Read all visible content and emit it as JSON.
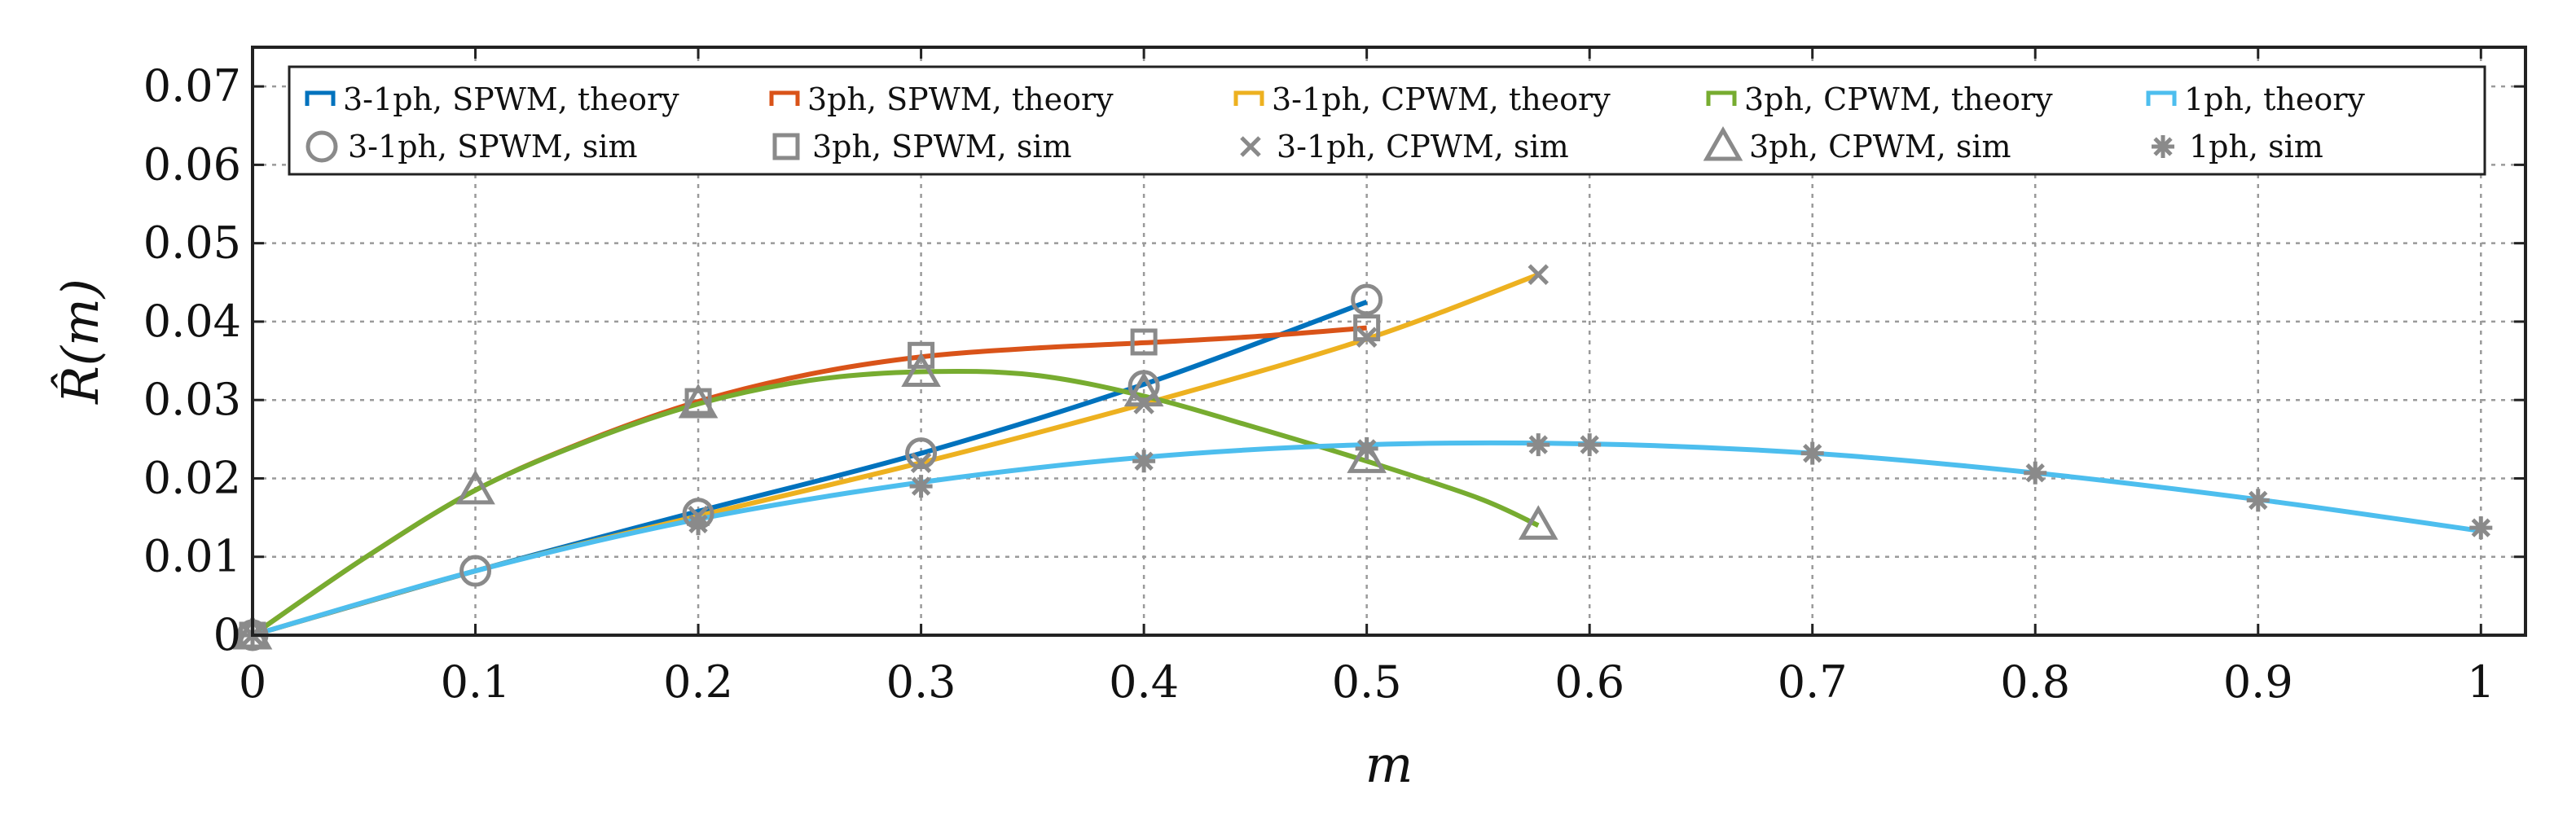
{
  "chart_data": {
    "type": "line",
    "title": "",
    "xlabel": "m",
    "ylabel": "R̂(m)",
    "xlim": [
      0,
      1.02
    ],
    "ylim": [
      0,
      0.075
    ],
    "grid": true,
    "legend_position": "top",
    "x_ticks": [
      {
        "value": 0,
        "label": "0"
      },
      {
        "value": 0.1,
        "label": "0.1"
      },
      {
        "value": 0.2,
        "label": "0.2"
      },
      {
        "value": 0.3,
        "label": "0.3"
      },
      {
        "value": 0.4,
        "label": "0.4"
      },
      {
        "value": 0.5,
        "label": "0.5"
      },
      {
        "value": 0.6,
        "label": "0.6"
      },
      {
        "value": 0.7,
        "label": "0.7"
      },
      {
        "value": 0.8,
        "label": "0.8"
      },
      {
        "value": 0.9,
        "label": "0.9"
      },
      {
        "value": 1,
        "label": "1"
      }
    ],
    "y_ticks": [
      {
        "value": 0,
        "label": "0"
      },
      {
        "value": 0.01,
        "label": "0.01"
      },
      {
        "value": 0.02,
        "label": "0.02"
      },
      {
        "value": 0.03,
        "label": "0.03"
      },
      {
        "value": 0.04,
        "label": "0.04"
      },
      {
        "value": 0.05,
        "label": "0.05"
      },
      {
        "value": 0.06,
        "label": "0.06"
      },
      {
        "value": 0.07,
        "label": "0.07"
      }
    ],
    "series": [
      {
        "name": "3-1ph, SPWM, theory",
        "kind": "line",
        "color": "#0072BD",
        "x": [
          0,
          0.1,
          0.2,
          0.3,
          0.4,
          0.5
        ],
        "y": [
          0,
          0.0082,
          0.0158,
          0.0232,
          0.032,
          0.0425
        ]
      },
      {
        "name": "3ph, SPWM, theory",
        "kind": "line",
        "color": "#D95319",
        "x": [
          0,
          0.05,
          0.1,
          0.15,
          0.2,
          0.25,
          0.3,
          0.35,
          0.4,
          0.45,
          0.5
        ],
        "y": [
          0,
          0.0098,
          0.0185,
          0.0248,
          0.0298,
          0.0333,
          0.0355,
          0.0366,
          0.0373,
          0.0381,
          0.0392
        ]
      },
      {
        "name": "3-1ph, CPWM, theory",
        "kind": "line",
        "color": "#EDB120",
        "x": [
          0,
          0.1,
          0.2,
          0.3,
          0.4,
          0.5,
          0.577
        ],
        "y": [
          0,
          0.0082,
          0.0152,
          0.022,
          0.0295,
          0.0378,
          0.046
        ]
      },
      {
        "name": "3ph, CPWM, theory",
        "kind": "line",
        "color": "#77AC30",
        "x": [
          0,
          0.05,
          0.1,
          0.15,
          0.2,
          0.25,
          0.3,
          0.35,
          0.4,
          0.45,
          0.5,
          0.55,
          0.577
        ],
        "y": [
          0,
          0.0098,
          0.0185,
          0.0247,
          0.0295,
          0.0325,
          0.0336,
          0.0332,
          0.0305,
          0.0265,
          0.0222,
          0.0175,
          0.014
        ]
      },
      {
        "name": "1ph, theory",
        "kind": "line",
        "color": "#4DBEEE",
        "x": [
          0,
          0.1,
          0.2,
          0.3,
          0.4,
          0.5,
          0.6,
          0.7,
          0.8,
          0.9,
          1.0
        ],
        "y": [
          0,
          0.0082,
          0.0148,
          0.0195,
          0.0227,
          0.0243,
          0.0244,
          0.0232,
          0.0207,
          0.0173,
          0.0133
        ]
      },
      {
        "name": "3-1ph, SPWM, sim",
        "kind": "marker",
        "marker": "circle",
        "color": "#8a8a8a",
        "x": [
          0,
          0.1,
          0.2,
          0.3,
          0.4,
          0.5
        ],
        "y": [
          0,
          0.0082,
          0.0155,
          0.0232,
          0.0318,
          0.0428
        ]
      },
      {
        "name": "3ph, SPWM, sim",
        "kind": "marker",
        "marker": "square",
        "color": "#8a8a8a",
        "x": [
          0,
          0.2,
          0.3,
          0.4,
          0.5
        ],
        "y": [
          0,
          0.0298,
          0.0357,
          0.0374,
          0.0392
        ]
      },
      {
        "name": "3-1ph, CPWM, sim",
        "kind": "marker",
        "marker": "cross",
        "color": "#8a8a8a",
        "x": [
          0,
          0.2,
          0.3,
          0.4,
          0.5,
          0.577
        ],
        "y": [
          0,
          0.0152,
          0.022,
          0.0295,
          0.038,
          0.046
        ]
      },
      {
        "name": "3ph, CPWM, sim",
        "kind": "marker",
        "marker": "triangle",
        "color": "#8a8a8a",
        "x": [
          0,
          0.1,
          0.2,
          0.3,
          0.4,
          0.5,
          0.577
        ],
        "y": [
          0,
          0.0185,
          0.0295,
          0.0335,
          0.031,
          0.0225,
          0.014
        ]
      },
      {
        "name": "1ph, sim",
        "kind": "marker",
        "marker": "asterisk",
        "color": "#8a8a8a",
        "x": [
          0,
          0.2,
          0.3,
          0.4,
          0.5,
          0.577,
          0.6,
          0.7,
          0.8,
          0.9,
          1.0
        ],
        "y": [
          0,
          0.0142,
          0.019,
          0.0222,
          0.0238,
          0.0243,
          0.0243,
          0.0232,
          0.0207,
          0.0172,
          0.0137
        ]
      }
    ]
  }
}
